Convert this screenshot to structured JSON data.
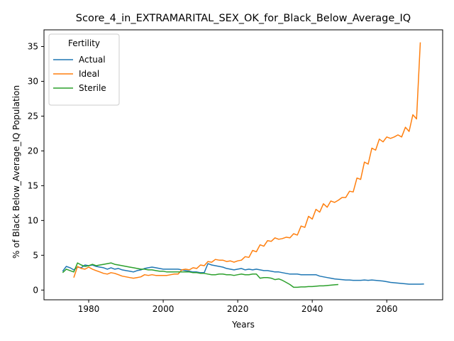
{
  "chart_data": {
    "type": "line",
    "title": "Score_4_in_EXTRAMARITAL_SEX_OK_for_Black_Below_Average_IQ",
    "xlabel": "Years",
    "ylabel": "% of Black Below_Average_IQ Population",
    "xlim": [
      1968,
      2075
    ],
    "ylim": [
      -1.4,
      37.4
    ],
    "xticks": [
      1980,
      2000,
      2020,
      2040,
      2060
    ],
    "yticks": [
      0,
      5,
      10,
      15,
      20,
      25,
      30,
      35
    ],
    "grid": false,
    "legend": {
      "title": "Fertility",
      "placement": "top-left"
    },
    "series": [
      {
        "name": "Actual",
        "color": "#1f77b4",
        "points": [
          [
            1973,
            2.7
          ],
          [
            1974,
            3.4
          ],
          [
            1975,
            3.2
          ],
          [
            1976,
            2.9
          ],
          [
            1977,
            3.3
          ],
          [
            1978,
            3.2
          ],
          [
            1979,
            3.6
          ],
          [
            1980,
            3.5
          ],
          [
            1981,
            3.6
          ],
          [
            1982,
            3.4
          ],
          [
            1983,
            3.3
          ],
          [
            1984,
            3.2
          ],
          [
            1985,
            3.0
          ],
          [
            1986,
            3.2
          ],
          [
            1987,
            3.0
          ],
          [
            1988,
            3.1
          ],
          [
            1989,
            2.9
          ],
          [
            1990,
            2.8
          ],
          [
            1991,
            2.7
          ],
          [
            1992,
            2.6
          ],
          [
            1993,
            2.8
          ],
          [
            1994,
            2.9
          ],
          [
            1995,
            3.1
          ],
          [
            1996,
            3.2
          ],
          [
            1997,
            3.3
          ],
          [
            1998,
            3.2
          ],
          [
            1999,
            3.1
          ],
          [
            2000,
            3.0
          ],
          [
            2001,
            3.0
          ],
          [
            2002,
            3.0
          ],
          [
            2003,
            3.0
          ],
          [
            2004,
            3.0
          ],
          [
            2005,
            2.9
          ],
          [
            2006,
            2.8
          ],
          [
            2007,
            2.7
          ],
          [
            2008,
            2.6
          ],
          [
            2009,
            2.6
          ],
          [
            2010,
            2.5
          ],
          [
            2011,
            2.5
          ],
          [
            2012,
            3.8
          ],
          [
            2013,
            3.6
          ],
          [
            2014,
            3.5
          ],
          [
            2015,
            3.4
          ],
          [
            2016,
            3.3
          ],
          [
            2017,
            3.1
          ],
          [
            2018,
            3.0
          ],
          [
            2019,
            2.9
          ],
          [
            2020,
            3.0
          ],
          [
            2021,
            3.1
          ],
          [
            2022,
            2.9
          ],
          [
            2023,
            3.0
          ],
          [
            2024,
            2.9
          ],
          [
            2025,
            3.0
          ],
          [
            2026,
            2.9
          ],
          [
            2027,
            2.8
          ],
          [
            2028,
            2.8
          ],
          [
            2029,
            2.7
          ],
          [
            2030,
            2.6
          ],
          [
            2031,
            2.6
          ],
          [
            2032,
            2.5
          ],
          [
            2033,
            2.4
          ],
          [
            2034,
            2.3
          ],
          [
            2035,
            2.3
          ],
          [
            2036,
            2.3
          ],
          [
            2037,
            2.2
          ],
          [
            2038,
            2.2
          ],
          [
            2039,
            2.2
          ],
          [
            2040,
            2.2
          ],
          [
            2041,
            2.2
          ],
          [
            2042,
            2.0
          ],
          [
            2043,
            1.9
          ],
          [
            2044,
            1.8
          ],
          [
            2045,
            1.7
          ],
          [
            2046,
            1.6
          ],
          [
            2047,
            1.55
          ],
          [
            2048,
            1.5
          ],
          [
            2049,
            1.45
          ],
          [
            2050,
            1.45
          ],
          [
            2051,
            1.4
          ],
          [
            2052,
            1.4
          ],
          [
            2053,
            1.4
          ],
          [
            2054,
            1.45
          ],
          [
            2055,
            1.4
          ],
          [
            2056,
            1.45
          ],
          [
            2057,
            1.4
          ],
          [
            2058,
            1.35
          ],
          [
            2059,
            1.3
          ],
          [
            2060,
            1.2
          ],
          [
            2061,
            1.1
          ],
          [
            2062,
            1.05
          ],
          [
            2063,
            1.0
          ],
          [
            2064,
            0.95
          ],
          [
            2065,
            0.9
          ],
          [
            2066,
            0.85
          ],
          [
            2067,
            0.85
          ],
          [
            2068,
            0.85
          ],
          [
            2069,
            0.85
          ],
          [
            2070,
            0.88
          ]
        ]
      },
      {
        "name": "Ideal",
        "color": "#ff7f0e",
        "points": [
          [
            1976,
            1.8
          ],
          [
            1977,
            3.4
          ],
          [
            1978,
            3.1
          ],
          [
            1979,
            3.0
          ],
          [
            1980,
            3.3
          ],
          [
            1981,
            3.0
          ],
          [
            1982,
            2.8
          ],
          [
            1983,
            2.6
          ],
          [
            1984,
            2.4
          ],
          [
            1985,
            2.3
          ],
          [
            1986,
            2.5
          ],
          [
            1987,
            2.4
          ],
          [
            1988,
            2.2
          ],
          [
            1989,
            2.0
          ],
          [
            1990,
            1.9
          ],
          [
            1991,
            1.8
          ],
          [
            1992,
            1.7
          ],
          [
            1993,
            1.8
          ],
          [
            1994,
            1.9
          ],
          [
            1995,
            2.2
          ],
          [
            1996,
            2.1
          ],
          [
            1997,
            2.2
          ],
          [
            1998,
            2.1
          ],
          [
            1999,
            2.1
          ],
          [
            2000,
            2.1
          ],
          [
            2001,
            2.1
          ],
          [
            2002,
            2.2
          ],
          [
            2003,
            2.3
          ],
          [
            2004,
            2.3
          ],
          [
            2005,
            2.9
          ],
          [
            2006,
            3.0
          ],
          [
            2007,
            2.9
          ],
          [
            2008,
            3.2
          ],
          [
            2009,
            3.1
          ],
          [
            2010,
            3.6
          ],
          [
            2011,
            3.5
          ],
          [
            2012,
            4.1
          ],
          [
            2013,
            4.0
          ],
          [
            2014,
            4.4
          ],
          [
            2015,
            4.3
          ],
          [
            2016,
            4.3
          ],
          [
            2017,
            4.1
          ],
          [
            2018,
            4.2
          ],
          [
            2019,
            4.0
          ],
          [
            2020,
            4.2
          ],
          [
            2021,
            4.3
          ],
          [
            2022,
            4.8
          ],
          [
            2023,
            4.7
          ],
          [
            2024,
            5.7
          ],
          [
            2025,
            5.5
          ],
          [
            2026,
            6.5
          ],
          [
            2027,
            6.3
          ],
          [
            2028,
            7.1
          ],
          [
            2029,
            7.0
          ],
          [
            2030,
            7.5
          ],
          [
            2031,
            7.3
          ],
          [
            2032,
            7.4
          ],
          [
            2033,
            7.6
          ],
          [
            2034,
            7.5
          ],
          [
            2035,
            8.1
          ],
          [
            2036,
            7.9
          ],
          [
            2037,
            9.2
          ],
          [
            2038,
            9.0
          ],
          [
            2039,
            10.6
          ],
          [
            2040,
            10.2
          ],
          [
            2041,
            11.6
          ],
          [
            2042,
            11.2
          ],
          [
            2043,
            12.4
          ],
          [
            2044,
            11.9
          ],
          [
            2045,
            12.8
          ],
          [
            2046,
            12.6
          ],
          [
            2047,
            12.9
          ],
          [
            2048,
            13.3
          ],
          [
            2049,
            13.3
          ],
          [
            2050,
            14.2
          ],
          [
            2051,
            14.1
          ],
          [
            2052,
            16.1
          ],
          [
            2053,
            15.9
          ],
          [
            2054,
            18.4
          ],
          [
            2055,
            18.1
          ],
          [
            2056,
            20.4
          ],
          [
            2057,
            20.1
          ],
          [
            2058,
            21.7
          ],
          [
            2059,
            21.3
          ],
          [
            2060,
            22.0
          ],
          [
            2061,
            21.8
          ],
          [
            2062,
            22.0
          ],
          [
            2063,
            22.3
          ],
          [
            2064,
            22.0
          ],
          [
            2065,
            23.4
          ],
          [
            2066,
            22.8
          ],
          [
            2067,
            25.2
          ],
          [
            2068,
            24.6
          ],
          [
            2069,
            35.6
          ]
        ]
      },
      {
        "name": "Sterile",
        "color": "#2ca02c",
        "points": [
          [
            1973,
            2.5
          ],
          [
            1974,
            3.0
          ],
          [
            1975,
            2.8
          ],
          [
            1976,
            2.6
          ],
          [
            1977,
            3.9
          ],
          [
            1978,
            3.6
          ],
          [
            1979,
            3.4
          ],
          [
            1980,
            3.5
          ],
          [
            1981,
            3.7
          ],
          [
            1982,
            3.5
          ],
          [
            1983,
            3.6
          ],
          [
            1984,
            3.7
          ],
          [
            1985,
            3.8
          ],
          [
            1986,
            3.9
          ],
          [
            1987,
            3.7
          ],
          [
            1988,
            3.6
          ],
          [
            1989,
            3.5
          ],
          [
            1990,
            3.4
          ],
          [
            1991,
            3.3
          ],
          [
            1992,
            3.2
          ],
          [
            1993,
            3.1
          ],
          [
            1994,
            3.0
          ],
          [
            1995,
            3.0
          ],
          [
            1996,
            2.9
          ],
          [
            1997,
            2.9
          ],
          [
            1998,
            2.8
          ],
          [
            1999,
            2.7
          ],
          [
            2000,
            2.7
          ],
          [
            2001,
            2.6
          ],
          [
            2002,
            2.6
          ],
          [
            2003,
            2.6
          ],
          [
            2004,
            2.6
          ],
          [
            2005,
            2.6
          ],
          [
            2006,
            2.6
          ],
          [
            2007,
            2.6
          ],
          [
            2008,
            2.5
          ],
          [
            2009,
            2.5
          ],
          [
            2010,
            2.4
          ],
          [
            2011,
            2.4
          ],
          [
            2012,
            2.3
          ],
          [
            2013,
            2.2
          ],
          [
            2014,
            2.2
          ],
          [
            2015,
            2.3
          ],
          [
            2016,
            2.3
          ],
          [
            2017,
            2.2
          ],
          [
            2018,
            2.2
          ],
          [
            2019,
            2.1
          ],
          [
            2020,
            2.2
          ],
          [
            2021,
            2.3
          ],
          [
            2022,
            2.2
          ],
          [
            2023,
            2.2
          ],
          [
            2024,
            2.3
          ],
          [
            2025,
            2.3
          ],
          [
            2026,
            1.7
          ],
          [
            2027,
            1.8
          ],
          [
            2028,
            1.8
          ],
          [
            2029,
            1.7
          ],
          [
            2030,
            1.5
          ],
          [
            2031,
            1.6
          ],
          [
            2032,
            1.4
          ],
          [
            2033,
            1.1
          ],
          [
            2034,
            0.8
          ],
          [
            2035,
            0.4
          ],
          [
            2036,
            0.4
          ],
          [
            2037,
            0.45
          ],
          [
            2038,
            0.45
          ],
          [
            2039,
            0.5
          ],
          [
            2040,
            0.5
          ],
          [
            2041,
            0.55
          ],
          [
            2042,
            0.6
          ],
          [
            2043,
            0.6
          ],
          [
            2044,
            0.65
          ],
          [
            2045,
            0.7
          ],
          [
            2046,
            0.75
          ],
          [
            2047,
            0.8
          ]
        ]
      }
    ]
  }
}
